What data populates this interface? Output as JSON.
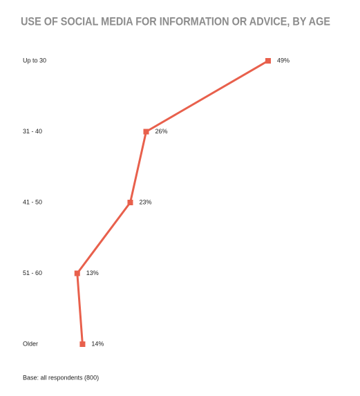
{
  "chart_data": {
    "type": "line",
    "orientation": "horizontal",
    "title": "USE OF SOCIAL MEDIA FOR INFORMATION OR ADVICE, BY AGE",
    "categories": [
      "Up to 30",
      "31 - 40",
      "41 - 50",
      "51 - 60",
      "Older"
    ],
    "values": [
      49,
      26,
      23,
      13,
      14
    ],
    "value_labels": [
      "49%",
      "26%",
      "23%",
      "13%",
      "14%"
    ],
    "color": "#e8604c",
    "footnote": "Base: all respondents (800)"
  }
}
